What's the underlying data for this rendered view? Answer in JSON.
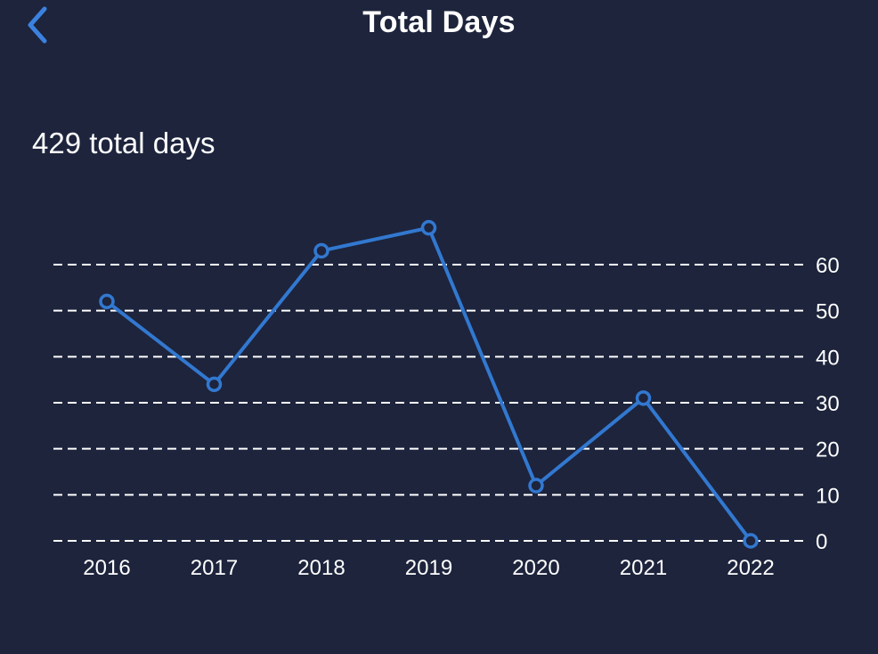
{
  "header": {
    "title": "Total Days",
    "back_icon": "chevron-left-icon"
  },
  "summary": {
    "text": "429 total days"
  },
  "colors": {
    "background": "#1d243c",
    "accent": "#3b82e0",
    "line": "#3278d0",
    "grid": "#ffffff",
    "text": "#ffffff"
  },
  "chart_data": {
    "type": "line",
    "categories": [
      "2016",
      "2017",
      "2018",
      "2019",
      "2020",
      "2021",
      "2022"
    ],
    "values": [
      52,
      34,
      63,
      68,
      12,
      31,
      0
    ],
    "title": "",
    "xlabel": "",
    "ylabel": "",
    "ylim": [
      0,
      60
    ],
    "yticks": [
      0,
      10,
      20,
      30,
      40,
      50,
      60
    ],
    "grid": true,
    "grid_style": "dashed",
    "y_axis_side": "right",
    "markers": "hollow-circle"
  }
}
